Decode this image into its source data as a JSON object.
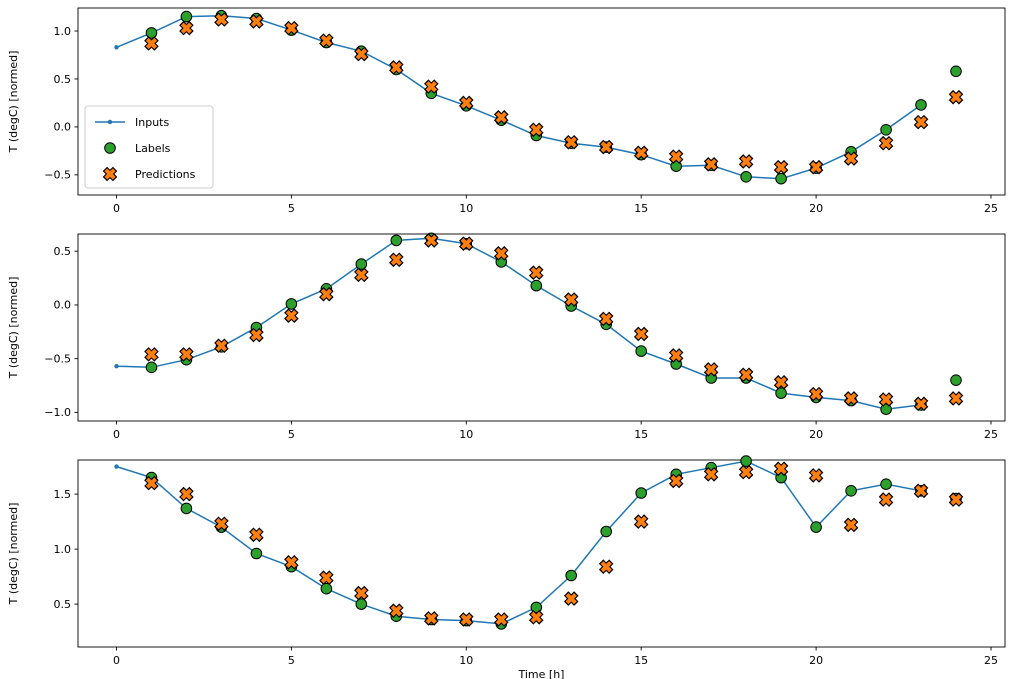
{
  "figure": {
    "background": "#ffffff"
  },
  "style": {
    "inputs_color": "#1f77b4",
    "labels_fill": "#2ca02c",
    "predictions_fill": "#ff7f0e",
    "marker_edge": "#000000",
    "axis_color": "#000000",
    "legend_border": "#cccccc"
  },
  "legend": {
    "entries": [
      {
        "label": "Inputs",
        "type": "line"
      },
      {
        "label": "Labels",
        "type": "circle"
      },
      {
        "label": "Predictions",
        "type": "x"
      }
    ]
  },
  "chart_data": [
    {
      "type": "line",
      "title": "",
      "xlabel": "",
      "ylabel": "T (degC) [normed]",
      "xlim": [
        -1.1,
        25.4
      ],
      "ylim": [
        -0.71,
        1.24
      ],
      "xticks": [
        0,
        5,
        10,
        15,
        20,
        25
      ],
      "yticks": [
        -0.5,
        0.0,
        0.5,
        1.0
      ],
      "legend_visible": true,
      "series": [
        {
          "name": "Inputs",
          "type": "line",
          "x": [
            0,
            1,
            2,
            3,
            4,
            5,
            6,
            7,
            8,
            9,
            10,
            11,
            12,
            13,
            14,
            15,
            16,
            17,
            18,
            19,
            20,
            21,
            22,
            23
          ],
          "y": [
            0.83,
            0.98,
            1.15,
            1.16,
            1.13,
            1.01,
            0.88,
            0.79,
            0.6,
            0.35,
            0.22,
            0.07,
            -0.09,
            -0.17,
            -0.21,
            -0.29,
            -0.41,
            -0.4,
            -0.52,
            -0.54,
            -0.43,
            -0.26,
            -0.03,
            0.23
          ]
        },
        {
          "name": "Labels",
          "type": "scatter-circle",
          "x": [
            1,
            2,
            3,
            4,
            5,
            6,
            7,
            8,
            9,
            10,
            11,
            12,
            13,
            14,
            15,
            16,
            17,
            18,
            19,
            20,
            21,
            22,
            23,
            24
          ],
          "y": [
            0.98,
            1.15,
            1.16,
            1.13,
            1.01,
            0.88,
            0.79,
            0.6,
            0.35,
            0.22,
            0.07,
            -0.09,
            -0.17,
            -0.21,
            -0.29,
            -0.41,
            -0.4,
            -0.52,
            -0.54,
            -0.43,
            -0.26,
            -0.03,
            0.23,
            0.58
          ]
        },
        {
          "name": "Predictions",
          "type": "scatter-x",
          "x": [
            1,
            2,
            3,
            4,
            5,
            6,
            7,
            8,
            9,
            10,
            11,
            12,
            13,
            14,
            15,
            16,
            17,
            18,
            19,
            20,
            21,
            22,
            23,
            24
          ],
          "y": [
            0.87,
            1.03,
            1.12,
            1.1,
            1.03,
            0.9,
            0.76,
            0.62,
            0.42,
            0.25,
            0.1,
            -0.03,
            -0.16,
            -0.21,
            -0.27,
            -0.31,
            -0.39,
            -0.36,
            -0.42,
            -0.42,
            -0.33,
            -0.17,
            0.05,
            0.31
          ]
        }
      ]
    },
    {
      "type": "line",
      "title": "",
      "xlabel": "",
      "ylabel": "T (degC) [normed]",
      "xlim": [
        -1.1,
        25.4
      ],
      "ylim": [
        -1.08,
        0.66
      ],
      "xticks": [
        0,
        5,
        10,
        15,
        20,
        25
      ],
      "yticks": [
        -1.0,
        -0.5,
        0.0,
        0.5
      ],
      "legend_visible": false,
      "series": [
        {
          "name": "Inputs",
          "type": "line",
          "x": [
            0,
            1,
            2,
            3,
            4,
            5,
            6,
            7,
            8,
            9,
            10,
            11,
            12,
            13,
            14,
            15,
            16,
            17,
            18,
            19,
            20,
            21,
            22,
            23
          ],
          "y": [
            -0.57,
            -0.58,
            -0.51,
            -0.39,
            -0.21,
            0.01,
            0.15,
            0.38,
            0.6,
            0.62,
            0.57,
            0.4,
            0.18,
            -0.01,
            -0.18,
            -0.43,
            -0.55,
            -0.68,
            -0.68,
            -0.82,
            -0.86,
            -0.89,
            -0.97,
            -0.93
          ]
        },
        {
          "name": "Labels",
          "type": "scatter-circle",
          "x": [
            1,
            2,
            3,
            4,
            5,
            6,
            7,
            8,
            9,
            10,
            11,
            12,
            13,
            14,
            15,
            16,
            17,
            18,
            19,
            20,
            21,
            22,
            23,
            24
          ],
          "y": [
            -0.58,
            -0.51,
            -0.39,
            -0.21,
            0.01,
            0.15,
            0.38,
            0.6,
            0.62,
            0.57,
            0.4,
            0.18,
            -0.01,
            -0.18,
            -0.43,
            -0.55,
            -0.68,
            -0.68,
            -0.82,
            -0.86,
            -0.89,
            -0.97,
            -0.93,
            -0.7
          ]
        },
        {
          "name": "Predictions",
          "type": "scatter-x",
          "x": [
            1,
            2,
            3,
            4,
            5,
            6,
            7,
            8,
            9,
            10,
            11,
            12,
            13,
            14,
            15,
            16,
            17,
            18,
            19,
            20,
            21,
            22,
            23,
            24
          ],
          "y": [
            -0.46,
            -0.46,
            -0.38,
            -0.28,
            -0.1,
            0.1,
            0.28,
            0.42,
            0.6,
            0.57,
            0.48,
            0.3,
            0.05,
            -0.13,
            -0.27,
            -0.47,
            -0.6,
            -0.65,
            -0.72,
            -0.83,
            -0.87,
            -0.88,
            -0.92,
            -0.87
          ]
        }
      ]
    },
    {
      "type": "line",
      "title": "",
      "xlabel": "Time [h]",
      "ylabel": "T (degC) [normed]",
      "xlim": [
        -1.1,
        25.4
      ],
      "ylim": [
        0.11,
        1.81
      ],
      "xticks": [
        0,
        5,
        10,
        15,
        20,
        25
      ],
      "yticks": [
        0.5,
        1.0,
        1.5
      ],
      "legend_visible": false,
      "series": [
        {
          "name": "Inputs",
          "type": "line",
          "x": [
            0,
            1,
            2,
            3,
            4,
            5,
            6,
            7,
            8,
            9,
            10,
            11,
            12,
            13,
            14,
            15,
            16,
            17,
            18,
            19,
            20,
            21,
            22,
            23
          ],
          "y": [
            1.75,
            1.65,
            1.37,
            1.2,
            0.96,
            0.84,
            0.64,
            0.5,
            0.39,
            0.36,
            0.35,
            0.32,
            0.47,
            0.76,
            1.16,
            1.51,
            1.68,
            1.74,
            1.8,
            1.65,
            1.2,
            1.53,
            1.59,
            1.53
          ]
        },
        {
          "name": "Labels",
          "type": "scatter-circle",
          "x": [
            1,
            2,
            3,
            4,
            5,
            6,
            7,
            8,
            9,
            10,
            11,
            12,
            13,
            14,
            15,
            16,
            17,
            18,
            19,
            20,
            21,
            22,
            23,
            24
          ],
          "y": [
            1.65,
            1.37,
            1.2,
            0.96,
            0.84,
            0.64,
            0.5,
            0.39,
            0.36,
            0.35,
            0.32,
            0.47,
            0.76,
            1.16,
            1.51,
            1.68,
            1.74,
            1.8,
            1.65,
            1.2,
            1.53,
            1.59,
            1.53,
            1.46
          ]
        },
        {
          "name": "Predictions",
          "type": "scatter-x",
          "x": [
            1,
            2,
            3,
            4,
            5,
            6,
            7,
            8,
            9,
            10,
            11,
            12,
            13,
            14,
            15,
            16,
            17,
            18,
            19,
            20,
            21,
            22,
            23,
            24
          ],
          "y": [
            1.6,
            1.5,
            1.23,
            1.13,
            0.88,
            0.74,
            0.6,
            0.44,
            0.37,
            0.36,
            0.36,
            0.38,
            0.55,
            0.84,
            1.25,
            1.62,
            1.68,
            1.7,
            1.73,
            1.67,
            1.22,
            1.45,
            1.53,
            1.45
          ]
        }
      ]
    }
  ]
}
